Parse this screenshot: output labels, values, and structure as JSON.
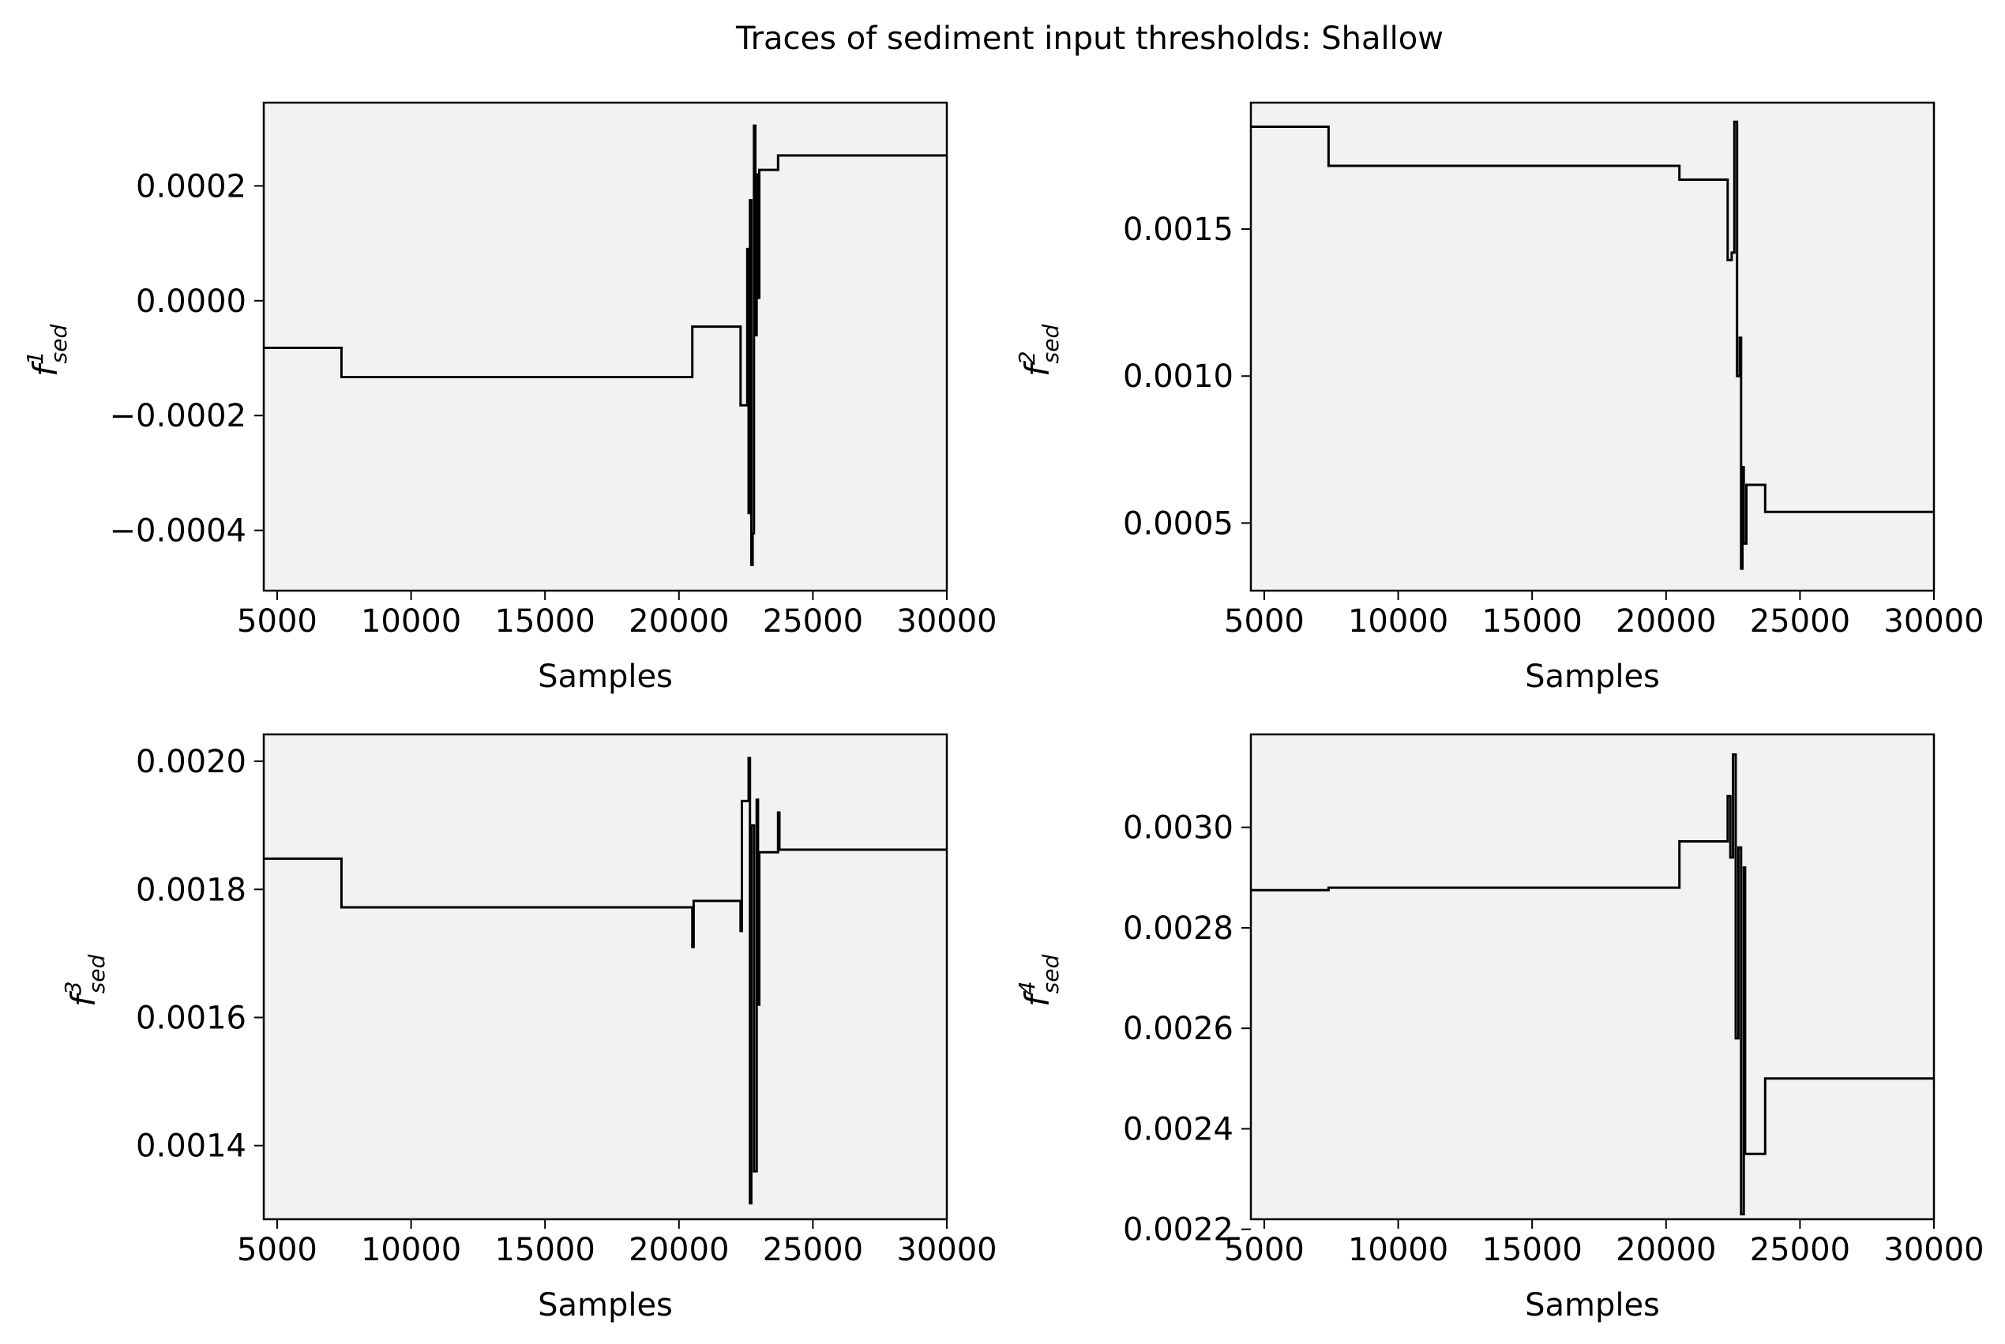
{
  "figure": {
    "title": "Traces of sediment input thresholds: Shallow"
  },
  "chart_data": [
    {
      "type": "line",
      "ylabel": {
        "base": "f",
        "sup": "1",
        "sub": "sed"
      },
      "xlabel": "Samples",
      "xlim": [
        4500,
        30000
      ],
      "ylim": [
        -0.000505,
        0.000345
      ],
      "xticks": [
        5000,
        10000,
        15000,
        20000,
        25000,
        30000
      ],
      "xtick_labels": [
        "5000",
        "10000",
        "15000",
        "20000",
        "25000",
        "30000"
      ],
      "yticks": [
        -0.0004,
        -0.0002,
        0.0,
        0.0002
      ],
      "ytick_labels": [
        "−0.0004",
        "−0.0002",
        "0.0000",
        "0.0002"
      ],
      "grid": false,
      "series": [
        {
          "x": [
            4500,
            7400,
            7400,
            20500,
            20500,
            22300,
            22300,
            22550,
            22550,
            22600,
            22600,
            22650,
            22650,
            22700,
            22700,
            22750,
            22750,
            22800,
            22800,
            22850,
            22850,
            22900,
            22900,
            22950,
            22950,
            23000,
            23000,
            23700,
            23700,
            30000
          ],
          "y": [
            -8.2e-05,
            -8.2e-05,
            -0.000133,
            -0.000133,
            -4.5e-05,
            -4.5e-05,
            -0.000182,
            -0.000182,
            9e-05,
            9e-05,
            -0.00037,
            -0.00037,
            0.000175,
            0.000175,
            -0.00046,
            -0.00046,
            -0.000405,
            -0.000405,
            0.000305,
            0.000305,
            -6e-05,
            -6e-05,
            0.00022,
            0.00022,
            5e-06,
            5e-06,
            0.000228,
            0.000228,
            0.000253,
            0.000253
          ]
        }
      ]
    },
    {
      "type": "line",
      "ylabel": {
        "base": "f",
        "sup": "2",
        "sub": "sed"
      },
      "xlabel": "Samples",
      "xlim": [
        4500,
        30000
      ],
      "ylim": [
        0.00027,
        0.00193
      ],
      "xticks": [
        5000,
        10000,
        15000,
        20000,
        25000,
        30000
      ],
      "xtick_labels": [
        "5000",
        "10000",
        "15000",
        "20000",
        "25000",
        "30000"
      ],
      "yticks": [
        0.0005,
        0.001,
        0.0015
      ],
      "ytick_labels": [
        "0.0005",
        "0.0010",
        "0.0015"
      ],
      "grid": false,
      "series": [
        {
          "x": [
            4500,
            7400,
            7400,
            20500,
            20500,
            22300,
            22300,
            22450,
            22450,
            22550,
            22550,
            22650,
            22650,
            22750,
            22750,
            22800,
            22800,
            22850,
            22850,
            22900,
            22900,
            23000,
            23000,
            23700,
            23700,
            30000
          ],
          "y": [
            0.001848,
            0.001848,
            0.001715,
            0.001715,
            0.001668,
            0.001668,
            0.001395,
            0.001395,
            0.00142,
            0.00142,
            0.001865,
            0.001865,
            0.001,
            0.001,
            0.00113,
            0.00113,
            0.000345,
            0.000345,
            0.00069,
            0.00069,
            0.00043,
            0.00043,
            0.00063,
            0.00063,
            0.000538,
            0.000538
          ]
        }
      ]
    },
    {
      "type": "line",
      "ylabel": {
        "base": "f",
        "sup": "3",
        "sub": "sed"
      },
      "xlabel": "Samples",
      "xlim": [
        4500,
        30000
      ],
      "ylim": [
        0.001285,
        0.002042
      ],
      "xticks": [
        5000,
        10000,
        15000,
        20000,
        25000,
        30000
      ],
      "xtick_labels": [
        "5000",
        "10000",
        "15000",
        "20000",
        "25000",
        "30000"
      ],
      "yticks": [
        0.0014,
        0.0016,
        0.0018,
        0.002
      ],
      "ytick_labels": [
        "0.0014",
        "0.0016",
        "0.0018",
        "0.0020"
      ],
      "grid": false,
      "series": [
        {
          "x": [
            4500,
            7400,
            7400,
            20500,
            20500,
            20550,
            20550,
            22300,
            22300,
            22350,
            22350,
            22600,
            22600,
            22650,
            22650,
            22700,
            22700,
            22800,
            22800,
            22900,
            22900,
            22950,
            22950,
            23000,
            23000,
            23700,
            23700,
            23750,
            23750,
            30000
          ],
          "y": [
            0.001848,
            0.001848,
            0.001772,
            0.001772,
            0.00171,
            0.00171,
            0.001782,
            0.001782,
            0.001735,
            0.001735,
            0.001938,
            0.001938,
            0.002005,
            0.002005,
            0.00131,
            0.00131,
            0.0019,
            0.0019,
            0.00136,
            0.00136,
            0.00194,
            0.00194,
            0.00162,
            0.00162,
            0.001858,
            0.001858,
            0.00192,
            0.00192,
            0.001862,
            0.001862
          ]
        }
      ]
    },
    {
      "type": "line",
      "ylabel": {
        "base": "f",
        "sup": "4",
        "sub": "sed"
      },
      "xlabel": "Samples",
      "xlim": [
        4500,
        30000
      ],
      "ylim": [
        0.00222,
        0.003185
      ],
      "xticks": [
        5000,
        10000,
        15000,
        20000,
        25000,
        30000
      ],
      "xtick_labels": [
        "5000",
        "10000",
        "15000",
        "20000",
        "25000",
        "30000"
      ],
      "yticks": [
        0.0022,
        0.0024,
        0.0026,
        0.0028,
        0.003
      ],
      "ytick_labels": [
        "0.0022",
        "0.0024",
        "0.0026",
        "0.0028",
        "0.0030"
      ],
      "grid": false,
      "series": [
        {
          "x": [
            4500,
            7400,
            7400,
            20500,
            20500,
            22300,
            22300,
            22400,
            22400,
            22500,
            22500,
            22600,
            22600,
            22700,
            22700,
            22800,
            22800,
            22900,
            22900,
            22950,
            22950,
            23700,
            23700,
            30000
          ],
          "y": [
            0.002875,
            0.002875,
            0.00288,
            0.00288,
            0.002972,
            0.002972,
            0.003062,
            0.003062,
            0.00294,
            0.00294,
            0.003145,
            0.003145,
            0.00258,
            0.00258,
            0.00296,
            0.00296,
            0.00223,
            0.00223,
            0.00292,
            0.00292,
            0.00235,
            0.00235,
            0.0025,
            0.0025
          ]
        }
      ]
    }
  ]
}
